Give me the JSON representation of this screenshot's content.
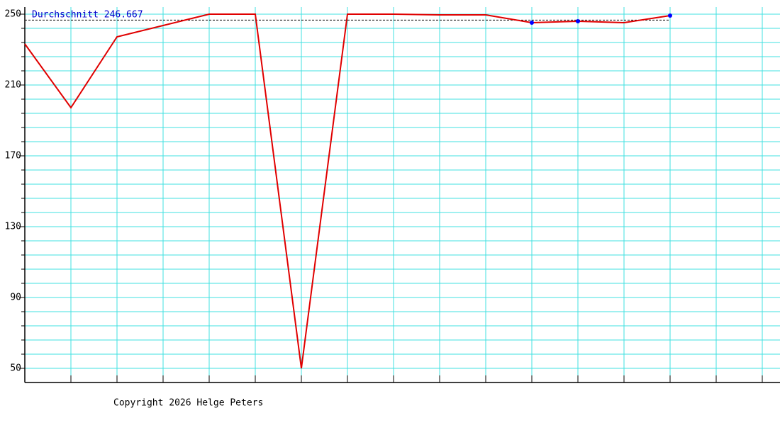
{
  "chart_data": {
    "type": "line",
    "categories": [
      null,
      null,
      null,
      null,
      null,
      null,
      null,
      null,
      null,
      null,
      null,
      null,
      null,
      null,
      null,
      null,
      null
    ],
    "series": [
      {
        "color": "#e00000",
        "values": [
          233.2,
          197.2,
          237.2,
          243.6,
          250,
          250,
          50,
          250,
          250,
          249.6,
          249.6,
          245.2,
          246,
          245.2,
          249.2,
          null,
          null
        ]
      },
      {
        "color": "#0000ff",
        "values": [
          null,
          null,
          null,
          null,
          null,
          null,
          null,
          null,
          null,
          null,
          null,
          245.2,
          246,
          null,
          249.2,
          null,
          null
        ]
      }
    ],
    "average": {
      "label": "Durchschnitt 246.667",
      "value": 246.667,
      "color": "#0000cc"
    },
    "ylim": [
      42,
      254
    ],
    "yticks": [
      50,
      90,
      130,
      170,
      210,
      250
    ],
    "minor_yticks": [
      50,
      58,
      66,
      74,
      82,
      90,
      98,
      106,
      114,
      122,
      130,
      138,
      146,
      154,
      162,
      170,
      178,
      186,
      194,
      202,
      210,
      218,
      226,
      234,
      242,
      250
    ],
    "grid": true,
    "grid_color": "#40e0e0",
    "footer": "Copyright 2026 Helge Peters"
  }
}
